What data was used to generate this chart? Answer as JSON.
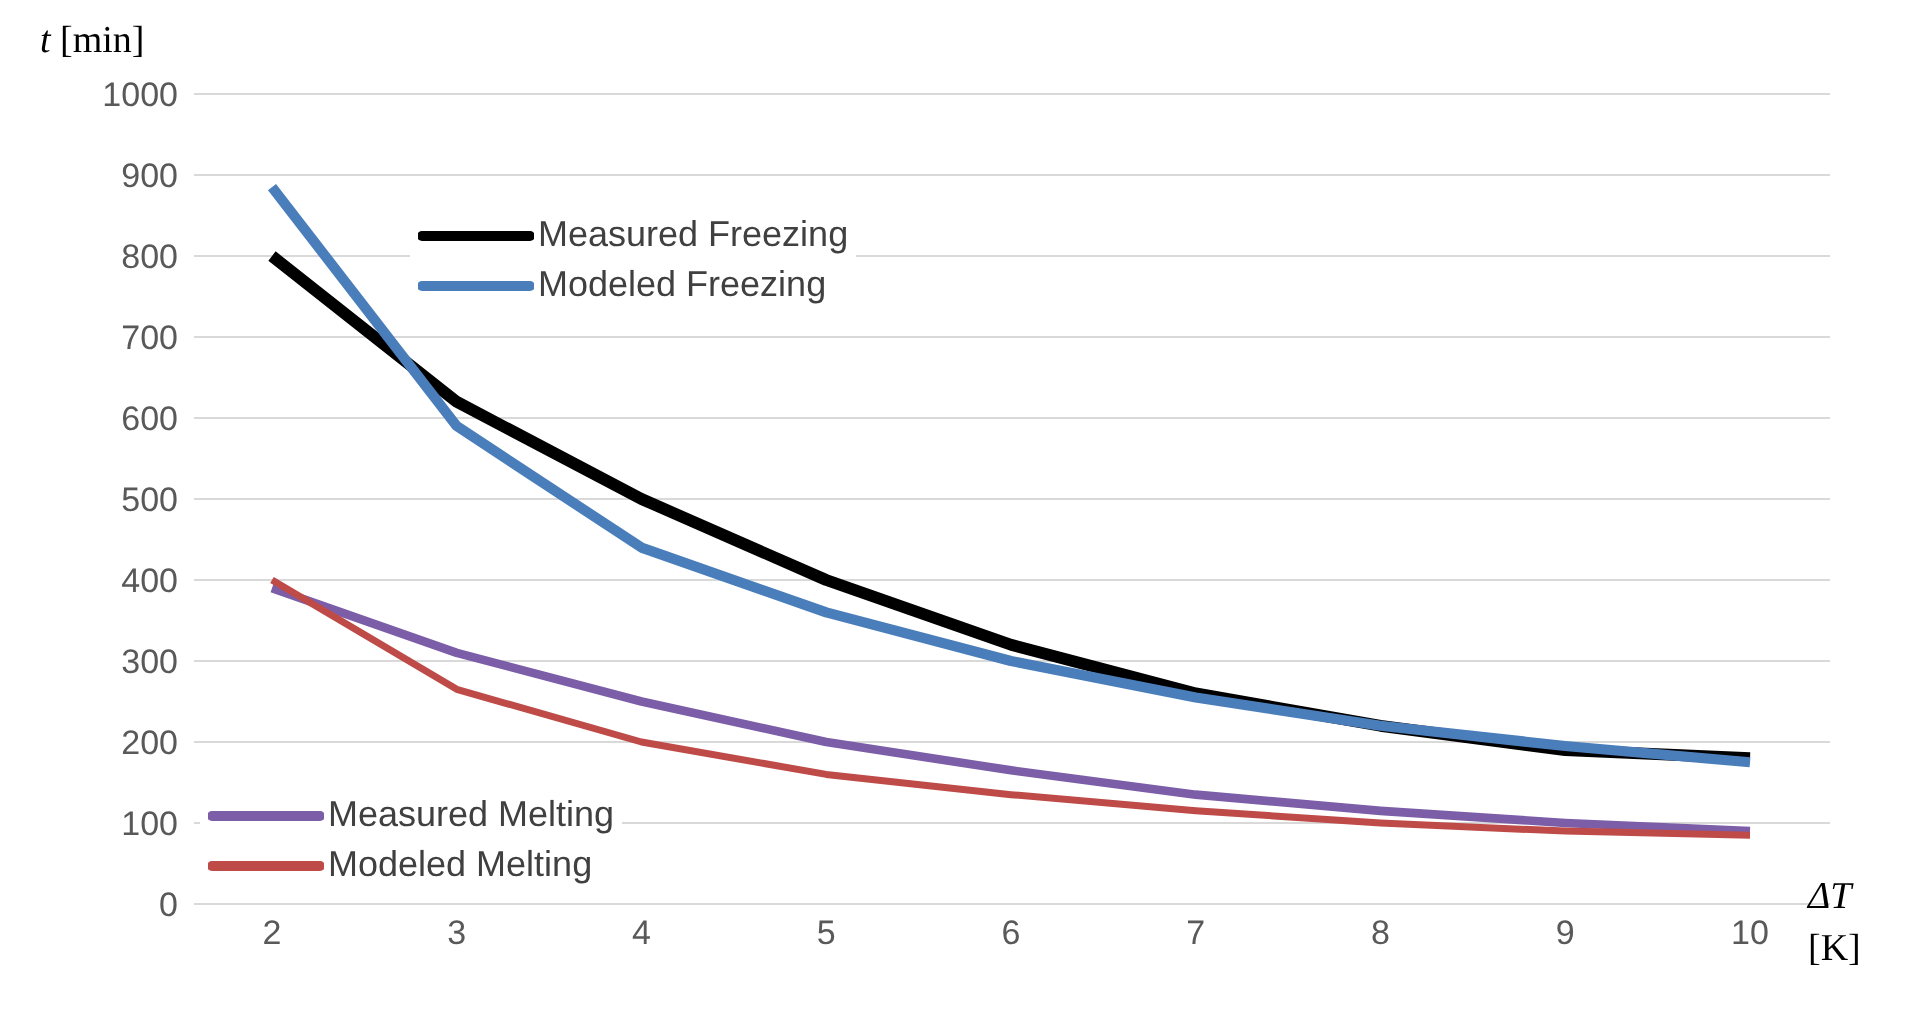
{
  "chart_data": {
    "type": "line",
    "xlabel": "ΔT [K]",
    "ylabel": "t [min]",
    "categories": [
      "2",
      "3",
      "4",
      "5",
      "6",
      "7",
      "8",
      "9",
      "10"
    ],
    "series": [
      {
        "name": "Measured Freezing",
        "color": "#000000",
        "values": [
          800,
          620,
          500,
          400,
          320,
          260,
          220,
          190,
          180
        ]
      },
      {
        "name": "Modeled Freezing",
        "color": "#4a7ebb",
        "values": [
          885,
          590,
          440,
          360,
          300,
          255,
          220,
          195,
          175
        ]
      },
      {
        "name": "Measured Melting",
        "color": "#7b5ea7",
        "values": [
          390,
          310,
          250,
          200,
          165,
          135,
          115,
          100,
          90
        ]
      },
      {
        "name": "Modeled Melting",
        "color": "#be4b48",
        "values": [
          400,
          265,
          200,
          160,
          135,
          115,
          100,
          90,
          85
        ]
      }
    ],
    "ylim": [
      0,
      1000
    ],
    "yticks": [
      0,
      100,
      200,
      300,
      400,
      500,
      600,
      700,
      800,
      900,
      1000
    ],
    "grid": "y",
    "legend": "left",
    "marker": "none",
    "line_style": "solid"
  }
}
